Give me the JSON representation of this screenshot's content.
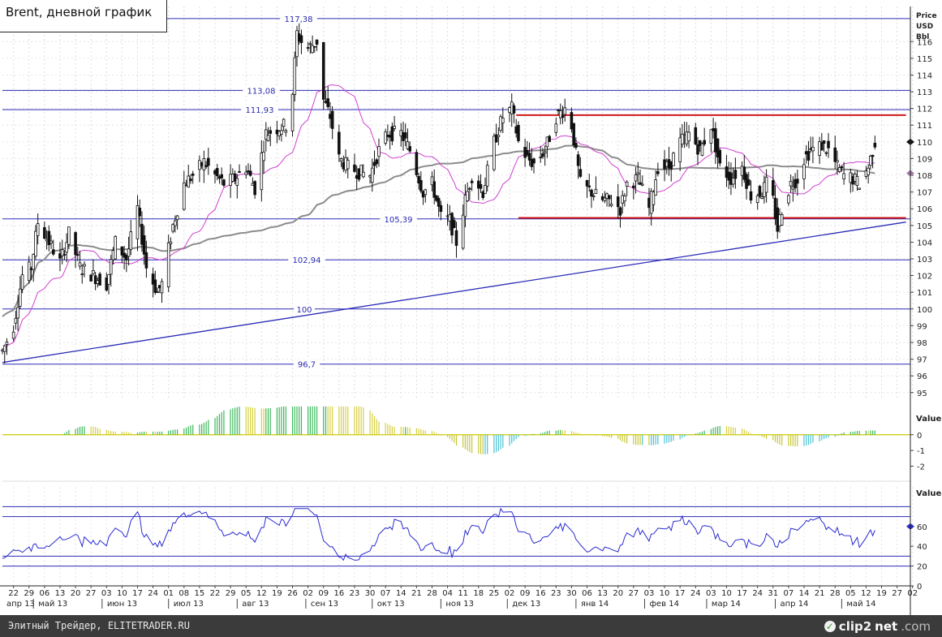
{
  "title": "Brent, дневной график",
  "unit_label": [
    "Price",
    "USD",
    "Bbl"
  ],
  "footer": {
    "left_text": "Элитный Трейдер, ELITETRADER.RU",
    "logo_clip": "clip2",
    "logo_net": "net",
    "logo_dom": ".com"
  },
  "chart_data": [
    {
      "type": "candlestick",
      "title": "Brent, дневной график",
      "ylabel": "Price USD Bbl",
      "ylim": [
        94.6,
        118.1
      ],
      "y_ticks": [
        95,
        96,
        97,
        98,
        99,
        100,
        101,
        102,
        103,
        104,
        105,
        106,
        107,
        108,
        109,
        110,
        111,
        112,
        113,
        114,
        115,
        116
      ],
      "last_price_marker": 110,
      "x_day_ticks": [
        "22",
        "29",
        "06",
        "13",
        "20",
        "27",
        "03",
        "10",
        "17",
        "24",
        "01",
        "08",
        "15",
        "22",
        "29",
        "05",
        "12",
        "19",
        "26",
        "02",
        "09",
        "16",
        "23",
        "30",
        "07",
        "14",
        "21",
        "28",
        "04",
        "11",
        "18",
        "25",
        "02",
        "09",
        "16",
        "23",
        "30",
        "06",
        "13",
        "20",
        "27",
        "03",
        "10",
        "17",
        "24",
        "03",
        "10",
        "17",
        "24",
        "31",
        "07",
        "14",
        "21",
        "28",
        "05",
        "12",
        "19",
        "27",
        "02"
      ],
      "x_month_labels": [
        "апр 13",
        "май 13",
        "июн 13",
        "июл 13",
        "авг 13",
        "сен 13",
        "окт 13",
        "ноя 13",
        "дек 13",
        "янв 14",
        "фев 14",
        "мар 14",
        "апр 14",
        "май 14"
      ],
      "level_lines": [
        {
          "label": "117,38",
          "value": 117.38
        },
        {
          "label": "113,08",
          "value": 113.08
        },
        {
          "label": "111,93",
          "value": 111.93
        },
        {
          "label": "105,39",
          "value": 105.39
        },
        {
          "label": "102,94",
          "value": 102.94
        },
        {
          "label": "100",
          "value": 100.0
        },
        {
          "label": "96,7",
          "value": 96.7
        }
      ],
      "red_range_lines": [
        {
          "value": 111.6,
          "from": "2013-12-05",
          "to": "2014-05-30"
        },
        {
          "value": 105.45,
          "from": "2013-12-06",
          "to": "2014-05-30"
        }
      ],
      "trendline": {
        "from": [
          "2013-04-17",
          96.8
        ],
        "to": [
          "2014-05-30",
          105.2
        ]
      },
      "price_anchors": [
        [
          "2013-04-17",
          97.5
        ],
        [
          "2013-04-22",
          99.0
        ],
        [
          "2013-04-26",
          102.0
        ],
        [
          "2013-04-30",
          102.5
        ],
        [
          "2013-05-03",
          105.2
        ],
        [
          "2013-05-08",
          104.0
        ],
        [
          "2013-05-13",
          102.8
        ],
        [
          "2013-05-17",
          104.5
        ],
        [
          "2013-05-22",
          102.5
        ],
        [
          "2013-05-28",
          102.0
        ],
        [
          "2013-06-03",
          101.5
        ],
        [
          "2013-06-07",
          104.0
        ],
        [
          "2013-06-12",
          103.0
        ],
        [
          "2013-06-17",
          106.0
        ],
        [
          "2013-06-21",
          102.5
        ],
        [
          "2013-06-26",
          101.0
        ],
        [
          "2013-06-28",
          101.5
        ],
        [
          "2013-07-03",
          105.0
        ],
        [
          "2013-07-08",
          107.5
        ],
        [
          "2013-07-12",
          108.0
        ],
        [
          "2013-07-17",
          108.8
        ],
        [
          "2013-07-22",
          108.0
        ],
        [
          "2013-07-26",
          107.5
        ],
        [
          "2013-07-31",
          107.8
        ],
        [
          "2013-08-05",
          108.5
        ],
        [
          "2013-08-09",
          107.2
        ],
        [
          "2013-08-14",
          110.5
        ],
        [
          "2013-08-19",
          110.8
        ],
        [
          "2013-08-23",
          111.0
        ],
        [
          "2013-08-26",
          113.0
        ],
        [
          "2013-08-28",
          116.5
        ],
        [
          "2013-09-01",
          115.5
        ],
        [
          "2013-09-04",
          115.8
        ],
        [
          "2013-09-06",
          116.0
        ],
        [
          "2013-09-09",
          112.5
        ],
        [
          "2013-09-12",
          111.5
        ],
        [
          "2013-09-16",
          109.0
        ],
        [
          "2013-09-20",
          108.5
        ],
        [
          "2013-09-25",
          108.2
        ],
        [
          "2013-09-30",
          108.0
        ],
        [
          "2013-10-04",
          109.5
        ],
        [
          "2013-10-08",
          110.5
        ],
        [
          "2013-10-14",
          110.5
        ],
        [
          "2013-10-18",
          109.5
        ],
        [
          "2013-10-24",
          107.0
        ],
        [
          "2013-10-28",
          107.5
        ],
        [
          "2013-11-01",
          105.5
        ],
        [
          "2013-11-05",
          105.3
        ],
        [
          "2013-11-08",
          104.0
        ],
        [
          "2013-11-12",
          106.5
        ],
        [
          "2013-11-15",
          108.0
        ],
        [
          "2013-11-20",
          107.0
        ],
        [
          "2013-11-25",
          110.0
        ],
        [
          "2013-11-29",
          111.5
        ],
        [
          "2013-12-03",
          112.0
        ],
        [
          "2013-12-06",
          110.0
        ],
        [
          "2013-12-10",
          109.0
        ],
        [
          "2013-12-13",
          108.7
        ],
        [
          "2013-12-18",
          109.5
        ],
        [
          "2013-12-23",
          111.5
        ],
        [
          "2013-12-27",
          112.0
        ],
        [
          "2013-12-30",
          111.0
        ],
        [
          "2014-01-03",
          107.5
        ],
        [
          "2014-01-08",
          107.0
        ],
        [
          "2014-01-13",
          106.5
        ],
        [
          "2014-01-17",
          106.5
        ],
        [
          "2014-01-21",
          106.0
        ],
        [
          "2014-01-24",
          107.5
        ],
        [
          "2014-01-29",
          107.8
        ],
        [
          "2014-02-03",
          106.0
        ],
        [
          "2014-02-07",
          108.5
        ],
        [
          "2014-02-12",
          108.5
        ],
        [
          "2014-02-17",
          110.0
        ],
        [
          "2014-02-21",
          110.5
        ],
        [
          "2014-02-26",
          109.5
        ],
        [
          "2014-03-03",
          111.0
        ],
        [
          "2014-03-07",
          108.5
        ],
        [
          "2014-03-12",
          107.8
        ],
        [
          "2014-03-17",
          108.5
        ],
        [
          "2014-03-21",
          106.8
        ],
        [
          "2014-03-26",
          107.0
        ],
        [
          "2014-03-28",
          107.5
        ],
        [
          "2014-03-31",
          106.5
        ],
        [
          "2014-04-02",
          104.8
        ],
        [
          "2014-04-04",
          106.0
        ],
        [
          "2014-04-08",
          107.5
        ],
        [
          "2014-04-11",
          107.8
        ],
        [
          "2014-04-14",
          109.0
        ],
        [
          "2014-04-17",
          109.5
        ],
        [
          "2014-04-22",
          109.8
        ],
        [
          "2014-04-25",
          109.5
        ],
        [
          "2014-04-29",
          108.5
        ],
        [
          "2014-05-02",
          108.0
        ],
        [
          "2014-05-06",
          107.8
        ],
        [
          "2014-05-09",
          107.5
        ],
        [
          "2014-05-13",
          108.5
        ],
        [
          "2014-05-16",
          110.0
        ]
      ]
    },
    {
      "type": "histogram",
      "ylabel": "Value",
      "ylim": [
        -2.8,
        2.0
      ],
      "y_ticks": [
        0,
        -1,
        -2
      ],
      "zero_line_value": 0
    },
    {
      "type": "line",
      "ylabel": "Value",
      "ylim": [
        0,
        100
      ],
      "y_ticks": [
        0,
        20,
        40,
        60
      ],
      "last_value_marker": 60,
      "level_lines": [
        20,
        30,
        70,
        80
      ]
    }
  ]
}
